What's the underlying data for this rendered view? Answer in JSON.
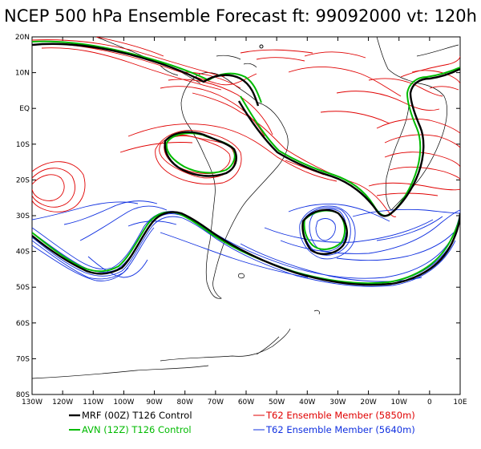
{
  "title": "NCEP 500 hPa Ensemble Forecast  ft: 99092000 vt: 120h",
  "map": {
    "lat_labels": [
      "20N",
      "10N",
      "EQ",
      "10S",
      "20S",
      "30S",
      "40S",
      "50S",
      "60S",
      "70S",
      "80S"
    ],
    "lon_labels": [
      "130W",
      "120W",
      "110W",
      "100W",
      "90W",
      "80W",
      "70W",
      "60W",
      "50W",
      "40W",
      "30W",
      "20W",
      "10W",
      "0",
      "10E"
    ]
  },
  "legend": [
    {
      "label": "MRF (00Z) T126 Control",
      "color": "#000000"
    },
    {
      "label": "AVN (12Z) T126 Control",
      "color": "#00bb00"
    },
    {
      "label": "T62 Ensemble Member (5850m)",
      "color": "#e00000"
    },
    {
      "label": "T62 Ensemble Member (5640m)",
      "color": "#1030e0"
    }
  ],
  "colors": {
    "mrf": "#000000",
    "avn": "#00bb00",
    "red": "#e00000",
    "blue": "#1030e0"
  }
}
